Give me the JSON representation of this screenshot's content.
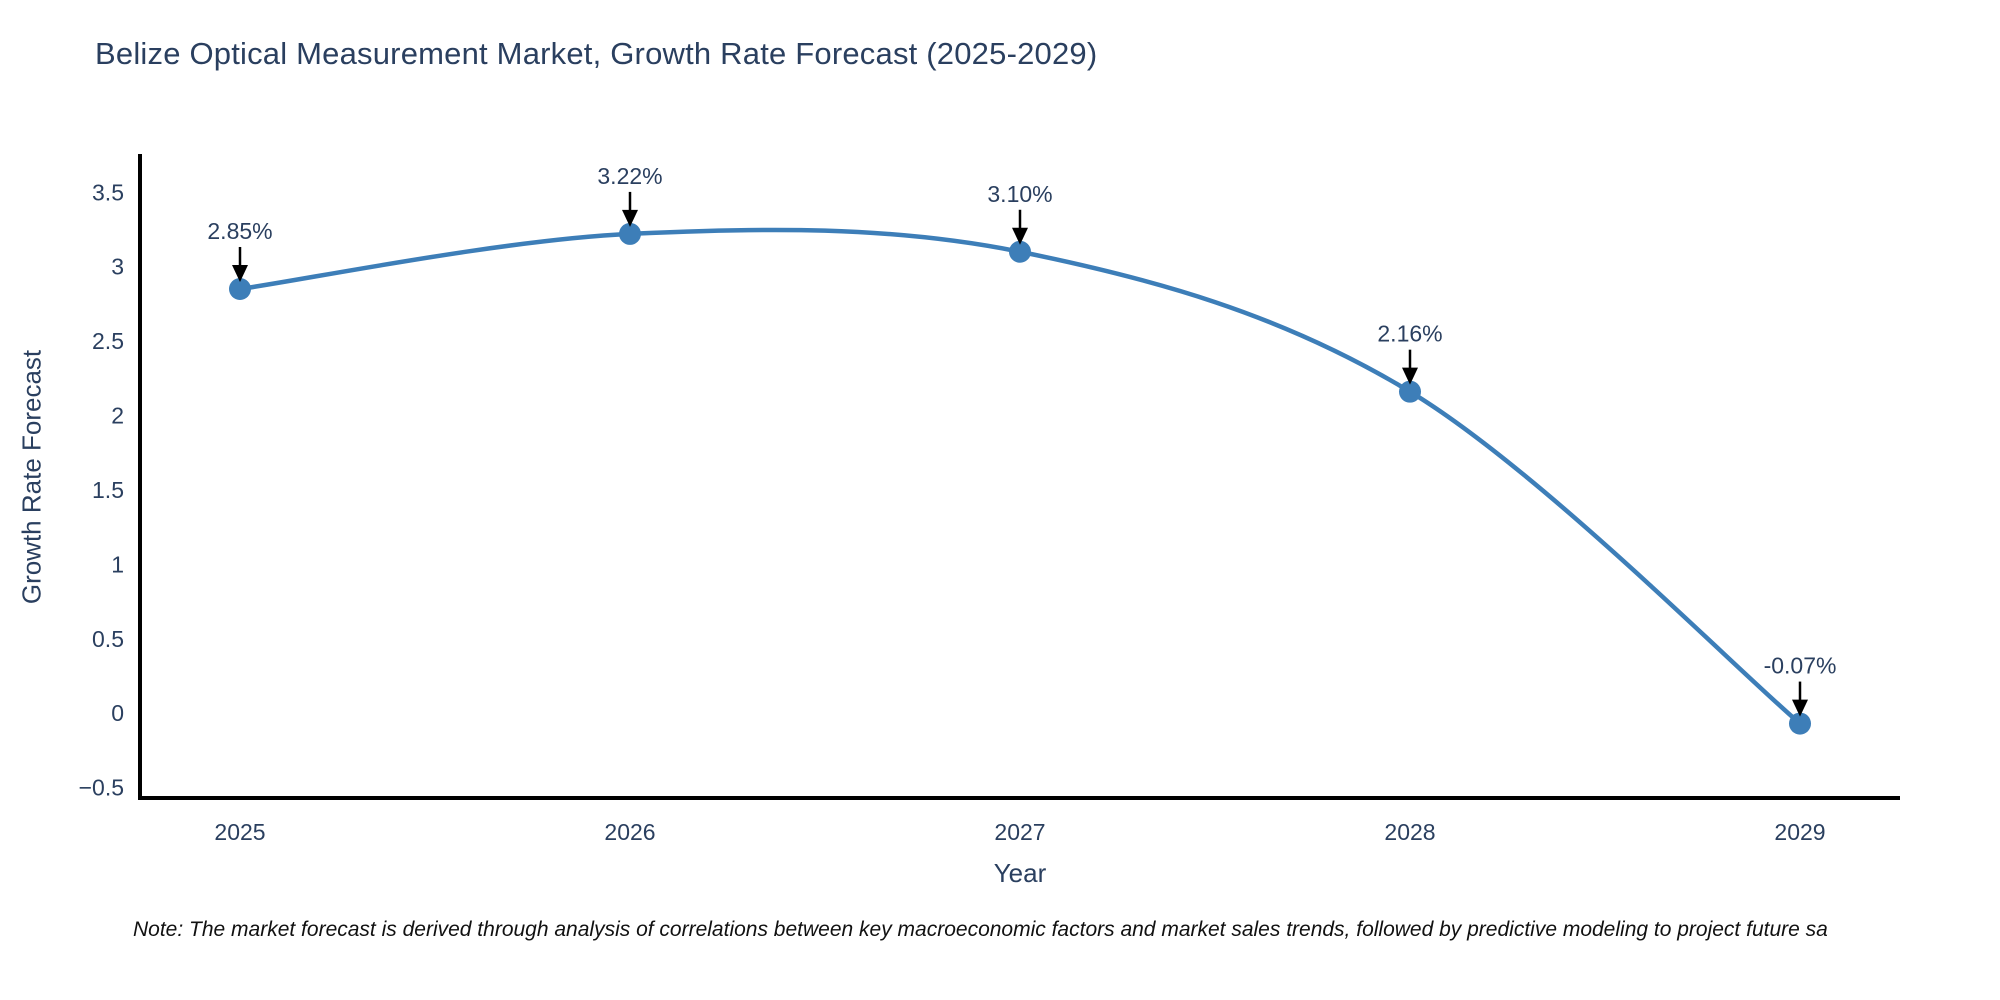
{
  "note": "Note: The market forecast is derived through analysis of correlations between key macroeconomic factors and market sales trends, followed by predictive modeling to project future sa",
  "chart_data": {
    "type": "line",
    "line_shape": "spline",
    "title": "Belize Optical Measurement Market, Growth Rate Forecast (2025-2029)",
    "xlabel": "Year",
    "ylabel": "Growth Rate Forecast",
    "categories": [
      "2025",
      "2026",
      "2027",
      "2028",
      "2029"
    ],
    "values": [
      2.85,
      3.22,
      3.1,
      2.16,
      -0.07
    ],
    "point_labels": [
      "2.85%",
      "3.22%",
      "3.10%",
      "2.16%",
      "-0.07%"
    ],
    "ytick_values": [
      3.5,
      3,
      2.5,
      2,
      1.5,
      1,
      0.5,
      0,
      -0.5
    ],
    "ytick_labels": [
      "3.5",
      "3",
      "2.5",
      "2",
      "1.5",
      "1",
      "0.5",
      "0",
      "−0.5"
    ],
    "ylim": [
      -0.57,
      3.73
    ],
    "grid": false,
    "legend": false,
    "line_color": "#3d7eb8",
    "marker_color": "#3d7eb8",
    "axis_line_color": "#000000",
    "text_color": "#2a3f5f",
    "annotation_arrow_color": "#000000",
    "background_color": "#ffffff"
  }
}
